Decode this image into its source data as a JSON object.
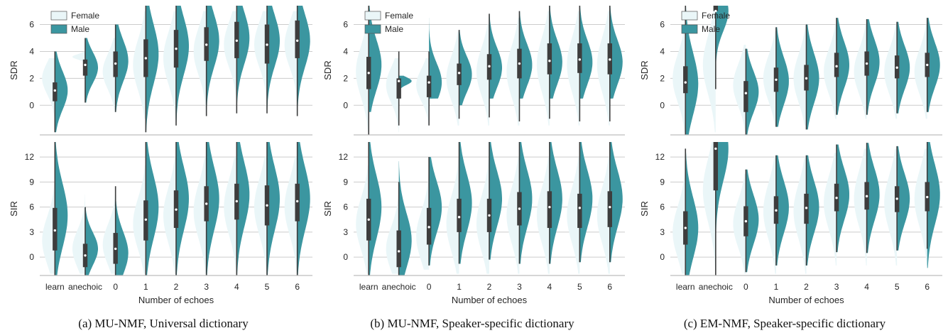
{
  "colors": {
    "female": "#eaf6f8",
    "male": "#3b96a0",
    "box": "#3d3d3d",
    "grid": "#cccccc",
    "axis": "#bdbdbd",
    "median": "#ffffff"
  },
  "legend": {
    "female": "Female",
    "male": "Male"
  },
  "chart_data": [
    {
      "type": "violin",
      "caption": "(a) MU-NMF, Universal dictionary",
      "xlabel": "Number of echoes",
      "categories": [
        "learn",
        "anechoic",
        "0",
        "1",
        "2",
        "3",
        "4",
        "5",
        "6"
      ],
      "series": [
        {
          "name": "Female"
        },
        {
          "name": "Male"
        }
      ],
      "grid": true,
      "legend_position": "top-left",
      "panels": [
        {
          "ylabel": "SDR",
          "ylim": [
            -2.2,
            7.4
          ],
          "yticks": [
            0,
            2,
            4,
            6
          ],
          "median": [
            1.1,
            3.0,
            3.1,
            3.5,
            4.2,
            4.5,
            4.8,
            4.5,
            4.8
          ],
          "q1": [
            0.3,
            2.2,
            2.1,
            2.1,
            2.8,
            3.3,
            3.5,
            3.1,
            3.5
          ],
          "q3": [
            1.7,
            3.4,
            4.0,
            4.9,
            5.6,
            5.8,
            6.2,
            6.0,
            6.3
          ],
          "wlow": [
            -2.0,
            0.2,
            -0.5,
            -2.0,
            -1.5,
            -0.8,
            -0.6,
            -0.6,
            -0.8
          ],
          "whigh": [
            4.0,
            5.0,
            6.0,
            7.4,
            7.4,
            7.4,
            7.4,
            7.4,
            7.4
          ],
          "female": {
            "lo": [
              -1.5,
              3.2,
              -0.5,
              -1.0,
              -1.0,
              -0.5,
              0.0,
              0.0,
              0.0
            ],
            "hi": [
              3.5,
              4.0,
              5.0,
              7.0,
              7.0,
              7.0,
              7.0,
              7.0,
              7.0
            ],
            "mode": [
              2.0,
              3.6,
              2.5,
              3.0,
              3.5,
              4.0,
              4.5,
              4.5,
              4.5
            ]
          },
          "male": {
            "lo": [
              -2.0,
              0.2,
              -0.5,
              -2.0,
              -1.5,
              -0.8,
              -0.6,
              -0.6,
              -0.8
            ],
            "hi": [
              4.0,
              5.0,
              6.0,
              7.4,
              7.4,
              7.4,
              7.4,
              7.4,
              7.4
            ],
            "mode": [
              1.1,
              2.8,
              3.3,
              3.8,
              4.4,
              4.8,
              5.0,
              4.8,
              4.8
            ]
          }
        },
        {
          "ylabel": "SIR",
          "ylim": [
            -2.2,
            13.8
          ],
          "yticks": [
            0,
            3,
            6,
            9,
            12
          ],
          "median": [
            3.2,
            0.2,
            1.0,
            4.5,
            5.7,
            6.4,
            6.7,
            6.2,
            6.7
          ],
          "q1": [
            0.8,
            -1.2,
            -0.8,
            2.0,
            3.5,
            4.3,
            4.5,
            3.8,
            4.3
          ],
          "q3": [
            5.9,
            1.6,
            2.9,
            6.8,
            8.0,
            8.5,
            8.8,
            8.6,
            8.8
          ],
          "wlow": [
            -2.2,
            -2.2,
            -2.2,
            -2.2,
            -2.2,
            -2.2,
            -2.2,
            -2.2,
            -2.2
          ],
          "whigh": [
            13.8,
            6.0,
            8.5,
            13.8,
            13.8,
            13.8,
            13.8,
            13.8,
            13.8
          ],
          "female": {
            "lo": [
              -2.0,
              -2.0,
              -2.0,
              -2.0,
              -2.0,
              -2.0,
              -2.0,
              -2.0,
              -2.0
            ],
            "hi": [
              10.0,
              7.5,
              8.0,
              11.0,
              12.0,
              12.0,
              12.0,
              12.0,
              12.0
            ],
            "mode": [
              2.0,
              1.0,
              1.5,
              4.0,
              5.0,
              5.5,
              6.0,
              6.0,
              6.0
            ]
          },
          "male": {
            "lo": [
              -2.2,
              -2.2,
              -2.2,
              -2.2,
              -2.2,
              -2.2,
              -2.2,
              -2.2,
              -2.2
            ],
            "hi": [
              13.8,
              6.0,
              8.5,
              13.8,
              13.8,
              13.8,
              13.8,
              13.8,
              13.8
            ],
            "mode": [
              5.0,
              1.0,
              0.5,
              6.0,
              7.0,
              7.0,
              7.5,
              7.0,
              7.0
            ]
          }
        }
      ]
    },
    {
      "type": "violin",
      "caption": "(b) MU-NMF, Speaker-specific dictionary",
      "xlabel": "Number of echoes",
      "categories": [
        "learn",
        "anechoic",
        "0",
        "1",
        "2",
        "3",
        "4",
        "5",
        "6"
      ],
      "series": [
        {
          "name": "Female"
        },
        {
          "name": "Male"
        }
      ],
      "grid": true,
      "legend_position": "top-left",
      "panels": [
        {
          "ylabel": "SDR",
          "ylim": [
            -2.2,
            7.4
          ],
          "yticks": [
            0,
            2,
            4,
            6
          ],
          "median": [
            2.4,
            1.8,
            1.7,
            2.4,
            2.9,
            3.1,
            3.3,
            3.4,
            3.4
          ],
          "q1": [
            1.2,
            0.5,
            0.6,
            1.5,
            1.9,
            2.0,
            2.3,
            2.4,
            2.3
          ],
          "q3": [
            3.6,
            2.0,
            2.2,
            3.1,
            3.8,
            4.2,
            4.6,
            4.6,
            4.6
          ],
          "wlow": [
            -2.2,
            -1.5,
            -1.5,
            -1.0,
            -0.9,
            -1.2,
            -1.0,
            -1.2,
            -1.2
          ],
          "whigh": [
            7.4,
            4.0,
            4.0,
            5.6,
            6.8,
            7.0,
            7.4,
            7.4,
            7.4
          ],
          "female": {
            "lo": [
              -2.0,
              -2.0,
              -1.5,
              -1.5,
              -1.5,
              -1.5,
              -1.5,
              -1.5,
              -1.5
            ],
            "hi": [
              6.0,
              3.5,
              3.5,
              5.5,
              6.0,
              6.5,
              7.0,
              7.0,
              7.0
            ],
            "mode": [
              2.5,
              1.5,
              1.5,
              2.0,
              2.5,
              2.5,
              3.0,
              3.0,
              3.0
            ]
          },
          "male": {
            "lo": [
              -0.5,
              1.0,
              0.5,
              0.0,
              0.5,
              0.5,
              0.5,
              0.5,
              0.5
            ],
            "hi": [
              7.4,
              2.2,
              6.5,
              5.6,
              6.8,
              7.0,
              7.4,
              7.4,
              7.4
            ],
            "mode": [
              3.0,
              1.8,
              1.7,
              2.3,
              2.8,
              3.0,
              3.2,
              3.2,
              3.2
            ]
          }
        },
        {
          "ylabel": "SIR",
          "ylim": [
            -2.2,
            13.8
          ],
          "yticks": [
            0,
            3,
            6,
            9,
            12
          ],
          "median": [
            4.5,
            0.7,
            3.6,
            4.8,
            5.0,
            5.8,
            6.0,
            5.9,
            6.0
          ],
          "q1": [
            2.0,
            -1.2,
            1.5,
            3.0,
            3.0,
            3.8,
            3.5,
            3.5,
            3.6
          ],
          "q3": [
            7.0,
            3.2,
            5.9,
            7.0,
            7.0,
            7.8,
            7.9,
            7.6,
            7.9
          ],
          "wlow": [
            -2.2,
            -2.2,
            -1.0,
            -0.8,
            -0.3,
            -0.8,
            -0.8,
            -0.6,
            -0.6
          ],
          "whigh": [
            13.8,
            9.0,
            12.0,
            13.8,
            13.8,
            13.8,
            13.8,
            13.8,
            13.8
          ],
          "female": {
            "lo": [
              -2.0,
              -2.0,
              -1.5,
              -2.0,
              -2.0,
              -2.0,
              -2.0,
              -2.0,
              -2.0
            ],
            "hi": [
              11.0,
              9.0,
              11.0,
              12.0,
              12.0,
              12.0,
              12.0,
              12.0,
              12.0
            ],
            "mode": [
              4.0,
              1.0,
              2.5,
              4.0,
              4.0,
              5.0,
              5.0,
              5.0,
              5.0
            ]
          },
          "male": {
            "lo": [
              -2.2,
              -2.2,
              -1.0,
              -0.8,
              -0.3,
              -0.8,
              -0.8,
              -0.6,
              -0.6
            ],
            "hi": [
              13.8,
              11.5,
              12.0,
              13.8,
              13.8,
              13.8,
              13.8,
              13.8,
              13.8
            ],
            "mode": [
              6.0,
              2.0,
              6.0,
              6.5,
              7.0,
              7.0,
              7.0,
              7.0,
              7.0
            ]
          }
        }
      ]
    },
    {
      "type": "violin",
      "caption": "(c) EM-NMF, Speaker-specific dictionary",
      "xlabel": "Number of echoes",
      "categories": [
        "learn",
        "anechoic",
        "0",
        "1",
        "2",
        "3",
        "4",
        "5",
        "6"
      ],
      "series": [
        {
          "name": "Female"
        },
        {
          "name": "Male"
        }
      ],
      "grid": true,
      "legend_position": "top-left",
      "panels": [
        {
          "ylabel": "SDR",
          "ylim": [
            -2.2,
            7.4
          ],
          "yticks": [
            0,
            2,
            4,
            6
          ],
          "median": [
            1.7,
            7.0,
            0.9,
            1.9,
            2.0,
            2.9,
            3.1,
            2.8,
            3.0
          ],
          "q1": [
            0.9,
            7.0,
            -0.5,
            1.0,
            1.1,
            2.1,
            2.2,
            2.0,
            2.1
          ],
          "q3": [
            2.9,
            7.4,
            1.8,
            2.8,
            3.0,
            3.9,
            4.0,
            3.7,
            3.9
          ],
          "wlow": [
            -2.2,
            1.2,
            -2.2,
            -1.6,
            -1.8,
            -0.7,
            -0.7,
            -0.6,
            -0.5
          ],
          "whigh": [
            7.4,
            7.4,
            4.2,
            5.8,
            6.0,
            6.5,
            6.4,
            6.2,
            6.5
          ],
          "female": {
            "lo": [
              -2.0,
              -2.0,
              -2.0,
              -1.5,
              -1.5,
              -1.0,
              -1.0,
              -1.0,
              -1.0
            ],
            "hi": [
              5.5,
              7.0,
              4.5,
              5.5,
              6.0,
              6.0,
              6.0,
              6.0,
              6.0
            ],
            "mode": [
              2.0,
              3.0,
              1.5,
              2.0,
              2.0,
              2.5,
              2.5,
              2.5,
              2.5
            ]
          },
          "male": {
            "lo": [
              -2.2,
              1.2,
              -2.2,
              -1.6,
              -1.8,
              -0.7,
              -0.7,
              -0.6,
              -0.5
            ],
            "hi": [
              7.4,
              7.4,
              4.2,
              5.8,
              6.0,
              6.5,
              6.4,
              6.2,
              6.5
            ],
            "mode": [
              1.6,
              7.0,
              1.0,
              1.8,
              2.0,
              3.0,
              3.2,
              2.8,
              3.0
            ]
          }
        },
        {
          "ylabel": "SIR",
          "ylim": [
            -2.2,
            13.8
          ],
          "yticks": [
            0,
            3,
            6,
            9,
            12
          ],
          "median": [
            3.5,
            13.0,
            4.3,
            5.6,
            5.9,
            7.1,
            7.3,
            7.0,
            7.2
          ],
          "q1": [
            1.5,
            8.0,
            2.5,
            4.0,
            4.0,
            5.5,
            5.7,
            5.4,
            5.5
          ],
          "q3": [
            5.5,
            13.8,
            6.1,
            7.3,
            7.6,
            8.8,
            9.0,
            8.5,
            9.0
          ],
          "wlow": [
            -2.2,
            -2.2,
            -1.8,
            -1.0,
            -1.0,
            0.6,
            0.5,
            0.8,
            1.0
          ],
          "whigh": [
            13.0,
            13.8,
            10.5,
            12.2,
            12.2,
            13.5,
            13.7,
            13.3,
            13.8
          ],
          "female": {
            "lo": [
              -2.0,
              -2.0,
              -2.0,
              -2.0,
              -2.0,
              -1.0,
              -1.0,
              -1.0,
              -1.0
            ],
            "hi": [
              11.0,
              13.8,
              10.0,
              12.0,
              12.0,
              12.5,
              13.0,
              13.0,
              13.0
            ],
            "mode": [
              3.0,
              8.0,
              4.0,
              5.5,
              5.5,
              6.5,
              7.0,
              6.5,
              7.0
            ]
          },
          "male": {
            "lo": [
              -2.2,
              -2.2,
              -1.8,
              -1.0,
              -1.0,
              0.6,
              0.5,
              0.8,
              -1.3
            ],
            "hi": [
              13.0,
              13.8,
              10.5,
              12.2,
              12.2,
              13.5,
              13.7,
              13.3,
              13.8
            ],
            "mode": [
              3.5,
              13.0,
              4.5,
              6.0,
              6.0,
              7.5,
              7.5,
              7.0,
              7.5
            ]
          }
        }
      ]
    }
  ]
}
